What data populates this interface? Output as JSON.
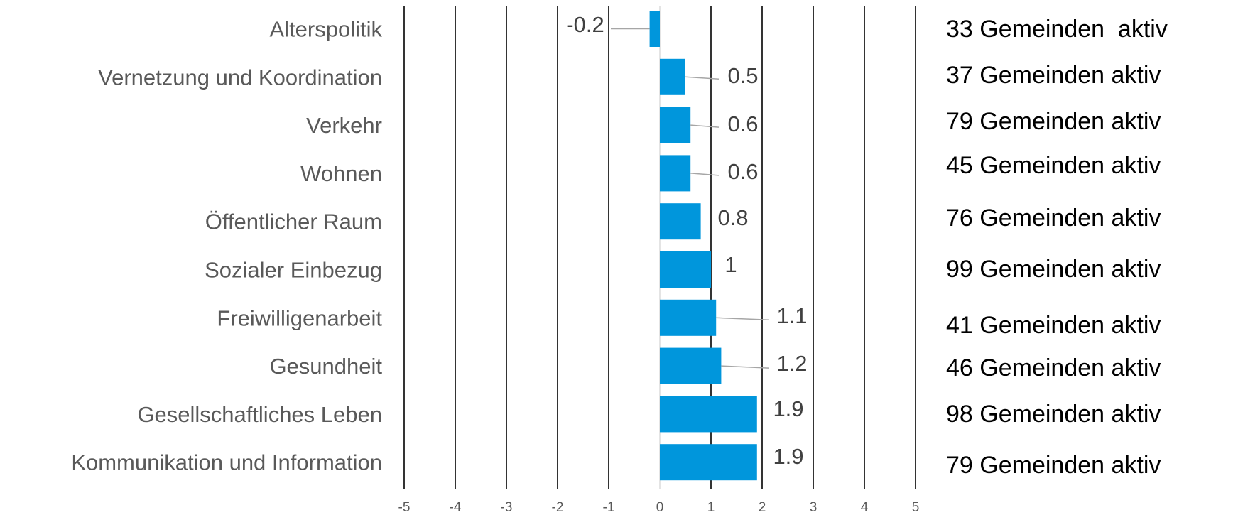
{
  "chart_data": {
    "type": "bar",
    "orientation": "horizontal",
    "title": "",
    "xlabel": "",
    "ylabel": "",
    "xlim": [
      -5,
      5
    ],
    "x_ticks": [
      "-5",
      "-4",
      "-3",
      "-2",
      "-1",
      "0",
      "1",
      "2",
      "3",
      "4",
      "5"
    ],
    "grid": true,
    "bar_color": "#0096DC",
    "categories": [
      "Alterspolitik",
      "Vernetzung und Koordination",
      "Verkehr",
      "Wohnen",
      "Öffentlicher Raum",
      "Sozialer Einbezug",
      "Freiwilligenarbeit",
      "Gesundheit",
      "Gesellschaftliches Leben",
      "Kommunikation und Information"
    ],
    "values": [
      -0.2,
      0.5,
      0.6,
      0.6,
      0.8,
      1,
      1.1,
      1.2,
      1.9,
      1.9
    ],
    "value_labels": [
      "-0.2",
      "0.5",
      "0.6",
      "0.6",
      "0.8",
      "1",
      "1.1",
      "1.2",
      "1.9",
      "1.9"
    ],
    "annotations": [
      "33 Gemeinden  aktiv",
      "37 Gemeinden aktiv",
      "79 Gemeinden aktiv",
      "45 Gemeinden aktiv",
      "76 Gemeinden aktiv",
      "99 Gemeinden aktiv",
      "41 Gemeinden aktiv",
      "46 Gemeinden aktiv",
      "98 Gemeinden aktiv",
      "79 Gemeinden aktiv"
    ]
  }
}
